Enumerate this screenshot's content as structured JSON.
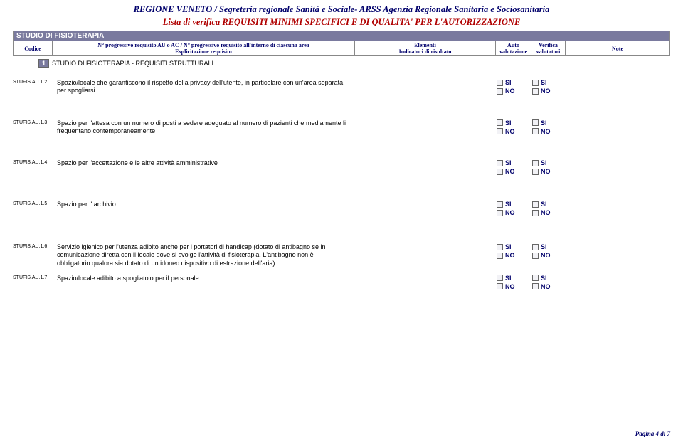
{
  "header": {
    "line1": "REGIONE  VENETO / Segreteria regionale Sanità e Sociale- ARSS Agenzia Regionale Sanitaria e Sociosanitaria",
    "line2": "Lista di verifica REQUISITI MINIMI SPECIFICI E DI QUALITA' PER L'AUTORIZZAZIONE"
  },
  "section_title": "STUDIO DI FISIOTERAPIA",
  "columns": {
    "codice": "Codice",
    "prog_line1": "N° progressivo requisito AU o AC / N° progressivo requisito all'interno di ciascuna area",
    "prog_line2": "Esplicitazione requisito",
    "elem_line1": "Elementi",
    "elem_line2": "Indicatori di risultato",
    "auto_line1": "Auto",
    "auto_line2": "valutazione",
    "verif_line1": "Verifica",
    "verif_line2": "valutatori",
    "note": "Note"
  },
  "group": {
    "num": "1",
    "title": "STUDIO DI FISIOTERAPIA - REQUISITI STRUTTURALI"
  },
  "checks": {
    "si": "SI",
    "no": "NO"
  },
  "requisiti": [
    {
      "code": "STUFIS.AU.1.2",
      "text": "Spazio/locale che garantiscono il rispetto della privacy dell'utente, in particolare con un'area separata per spogliarsi"
    },
    {
      "code": "STUFIS.AU.1.3",
      "text": "Spazio per l'attesa con un numero di posti a sedere adeguato al numero di pazienti che mediamente li frequentano contemporaneamente"
    },
    {
      "code": "STUFIS.AU.1.4",
      "text": "Spazio per l'accettazione e le altre attività amministrative"
    },
    {
      "code": "STUFIS.AU.1.5",
      "text": "Spazio per l' archivio"
    },
    {
      "code": "STUFIS.AU.1.6",
      "text": "Servizio igienico per l'utenza adibito anche per i portatori di handicap (dotato di antibagno se in comunicazione diretta con il locale dove si svolge l'attività di fisioterapia. L'antibagno non è obbligatorio qualora sia dotato di un idoneo dispositivo di estrazione dell'aria)"
    },
    {
      "code": "STUFIS.AU.1.7",
      "text": "Spazio/locale adibito a spogliatoio per il personale"
    }
  ],
  "footer": "Pagina 4 di 7",
  "colors": {
    "header_blue": "#00006b",
    "header_red": "#b00000",
    "bar_bg": "#7a7a9e"
  }
}
